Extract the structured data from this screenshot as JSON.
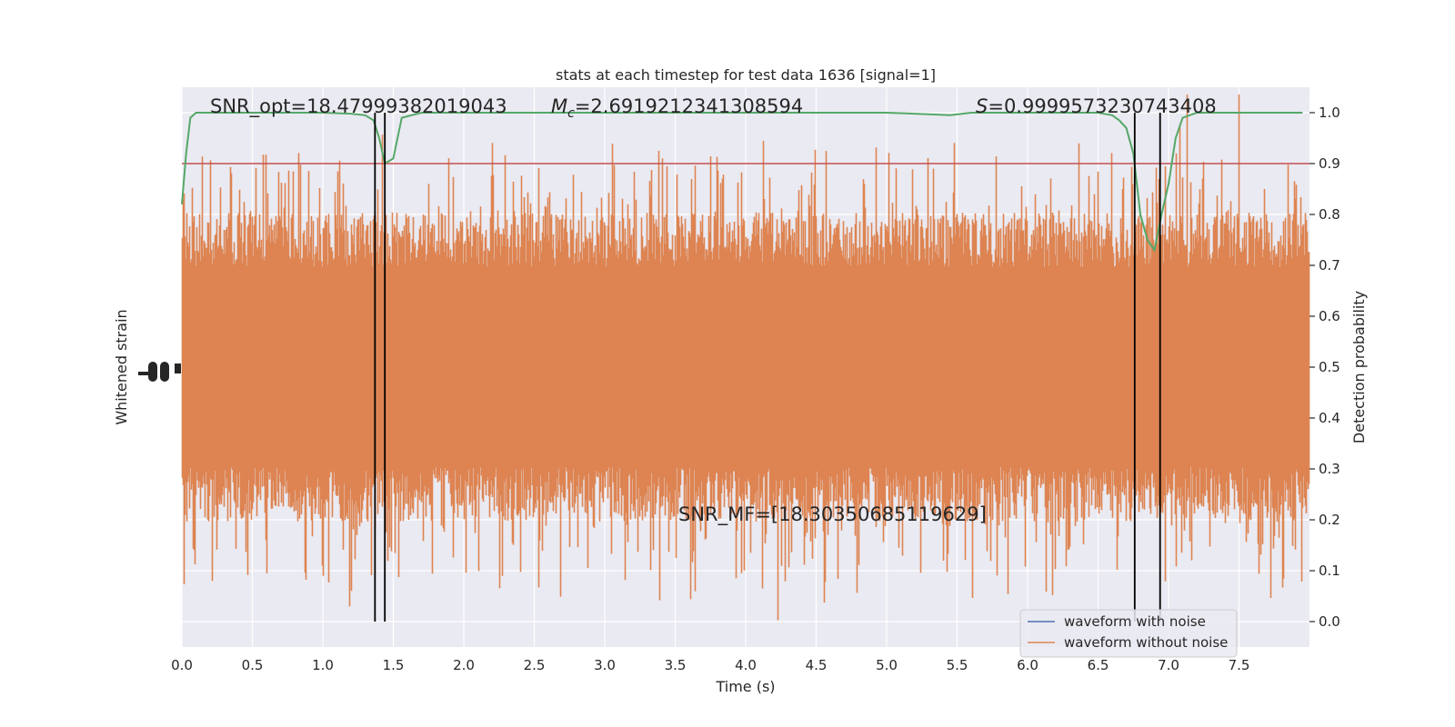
{
  "chart_data": {
    "type": "line",
    "title": "stats at each timestep for test data 1636 [signal=1]",
    "xlabel": "Time (s)",
    "ylabel_left": "Whitened strain",
    "ylabel_right": "Detection probability",
    "xlim": [
      0.0,
      8.0
    ],
    "ylim_right": [
      -0.05,
      1.05
    ],
    "x_ticks": [
      "0.0",
      "0.5",
      "1.0",
      "1.5",
      "2.0",
      "2.5",
      "3.0",
      "3.5",
      "4.0",
      "4.5",
      "5.0",
      "5.5",
      "6.0",
      "6.5",
      "7.0",
      "7.5"
    ],
    "x_tick_values": [
      0,
      0.5,
      1,
      1.5,
      2,
      2.5,
      3,
      3.5,
      4,
      4.5,
      5,
      5.5,
      6,
      6.5,
      7,
      7.5
    ],
    "y_right_ticks": [
      "0.0",
      "0.1",
      "0.2",
      "0.3",
      "0.4",
      "0.5",
      "0.6",
      "0.7",
      "0.8",
      "0.9",
      "1.0"
    ],
    "y_right_tick_values": [
      0,
      0.1,
      0.2,
      0.3,
      0.4,
      0.5,
      0.6,
      0.7,
      0.8,
      0.9,
      1.0
    ],
    "grid": true,
    "legend_position": "lower-right",
    "series": [
      {
        "name": "waveform with noise",
        "color": "#4c72b0"
      },
      {
        "name": "waveform without noise",
        "color": "#dd8452"
      }
    ],
    "strain_band_center": 0.5,
    "probability_series": {
      "color": "#55a868",
      "x": [
        0.0,
        0.03,
        0.06,
        0.1,
        0.2,
        0.5,
        1.0,
        1.2,
        1.3,
        1.36,
        1.4,
        1.44,
        1.5,
        1.56,
        1.7,
        2.5,
        3.5,
        4.5,
        5.0,
        5.2,
        5.45,
        5.6,
        6.0,
        6.5,
        6.6,
        6.65,
        6.7,
        6.75,
        6.8,
        6.85,
        6.9,
        6.95,
        7.0,
        7.05,
        7.1,
        7.2,
        7.5,
        7.7,
        7.8,
        7.95
      ],
      "y": [
        0.82,
        0.92,
        0.99,
        1.0,
        1.0,
        1.0,
        1.0,
        0.998,
        0.995,
        0.985,
        0.95,
        0.9,
        0.91,
        0.99,
        1.0,
        1.0,
        1.0,
        1.0,
        1.0,
        0.998,
        0.995,
        1.0,
        1.0,
        1.0,
        0.995,
        0.985,
        0.97,
        0.92,
        0.8,
        0.75,
        0.73,
        0.8,
        0.86,
        0.95,
        0.99,
        1.0,
        1.0,
        1.0,
        1.0,
        1.0
      ]
    },
    "threshold": {
      "value": 0.9,
      "color": "#c44e52"
    },
    "event_markers": [
      1.37,
      1.44,
      6.76,
      6.94
    ],
    "annotations": {
      "snr_opt": "SNR_opt=18.47999382019043",
      "mc_symbol": "M",
      "mc_subscript": "c",
      "mc_value": "=2.6919212341308594",
      "s_symbol": "S",
      "s_value": "=0.9999573230743408",
      "snr_mf": "SNR_MF=[18.30350685119629]"
    },
    "colors": {
      "axes_bg": "#eaeaf2",
      "grid": "#ffffff",
      "strain": "#dd8452",
      "marker": "#000000"
    }
  }
}
